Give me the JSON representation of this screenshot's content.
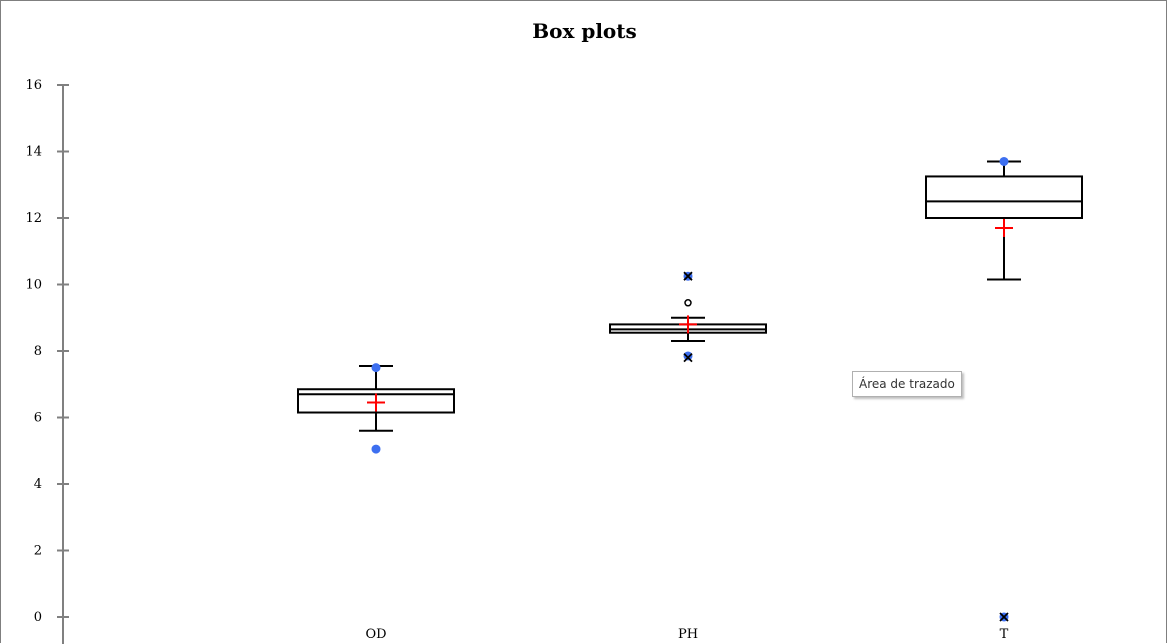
{
  "chart_data": {
    "type": "box",
    "title": "Box plots",
    "xlabel": "",
    "ylabel": "",
    "ylim": [
      0,
      16
    ],
    "yticks": [
      "0",
      "2",
      "4",
      "6",
      "8",
      "10",
      "12",
      "14",
      "16"
    ],
    "categories": [
      "OD",
      "PH",
      "T"
    ],
    "boxes": [
      {
        "category": "OD",
        "whisker_low": 5.6,
        "q1": 6.15,
        "median": 6.7,
        "q3": 6.85,
        "whisker_high": 7.55,
        "mean": 6.45,
        "min_marker": 5.05,
        "max_marker": 7.5,
        "outliers_circle": [],
        "outliers_x": []
      },
      {
        "category": "PH",
        "whisker_low": 8.3,
        "q1": 8.55,
        "median": 8.65,
        "q3": 8.8,
        "whisker_high": 9.0,
        "mean": 8.8,
        "min_marker": 7.85,
        "max_marker": 10.25,
        "outliers_circle": [
          9.45
        ],
        "outliers_x": [
          7.8,
          10.25
        ]
      },
      {
        "category": "T",
        "whisker_low": 10.15,
        "q1": 12.0,
        "median": 12.5,
        "q3": 13.25,
        "whisker_high": 13.7,
        "mean": 11.7,
        "min_marker": 0.0,
        "max_marker": 13.7,
        "outliers_circle": [],
        "outliers_x": [
          0.0
        ]
      }
    ],
    "colors": {
      "box": "#000000",
      "mean": "#ff0000",
      "extreme_marker": "#3d6ff0",
      "axis": "#808080"
    },
    "grid": false,
    "legend": "none"
  },
  "tooltip": {
    "text": "Área de trazado"
  }
}
